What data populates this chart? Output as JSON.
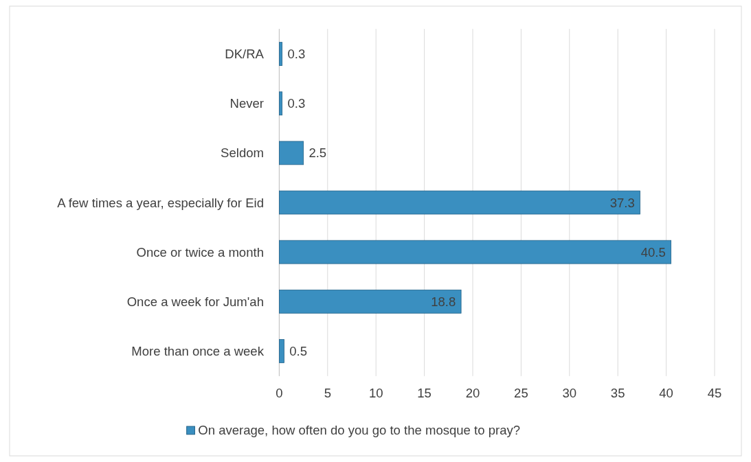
{
  "chart_data": {
    "type": "bar",
    "orientation": "horizontal",
    "categories": [
      "DK/RA",
      "Never",
      "Seldom",
      "A few times a year, especially for Eid",
      "Once or twice a month",
      "Once a week for Jum'ah",
      "More than once a week"
    ],
    "series": [
      {
        "name": "On average, how often do you go to the mosque to pray?",
        "color": "#3a8fc0",
        "values": [
          0.3,
          0.3,
          2.5,
          37.3,
          40.5,
          18.8,
          0.5
        ]
      }
    ],
    "xlim": [
      0,
      45
    ],
    "xticks": [
      0,
      5,
      10,
      15,
      20,
      25,
      30,
      35,
      40,
      45
    ],
    "grid": "x",
    "legend": "bottom",
    "data_labels": true
  }
}
